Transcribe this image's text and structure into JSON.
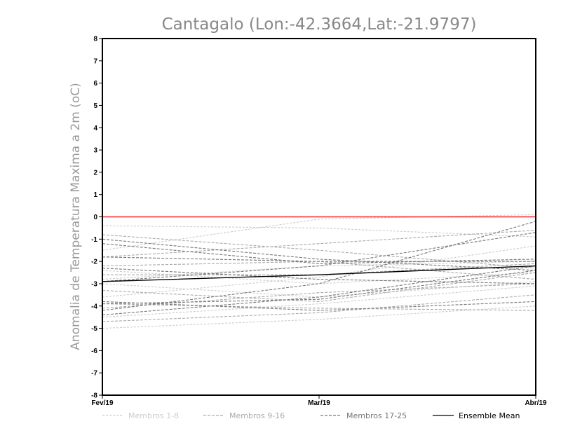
{
  "chart_data": {
    "type": "line",
    "title": "Cantagalo (Lon:-42.3664,Lat:-21.9797)",
    "ylabel": "Anomalia de Temperatura Maxima a 2m (oC)",
    "xlabel": "",
    "categories": [
      "Fev/19",
      "Mar/19",
      "Abr/19"
    ],
    "ylim": [
      -8,
      8
    ],
    "yticks": [
      8,
      7,
      6,
      5,
      4,
      3,
      2,
      1,
      0,
      -1,
      -2,
      -3,
      -4,
      -5,
      -6,
      -7,
      -8
    ],
    "ytick_labels": [
      "8",
      "7",
      "6",
      "5",
      "4",
      "3",
      "2",
      "1",
      "0",
      "-1",
      "-2",
      "-3",
      "-4",
      "-5",
      "-6",
      "-7",
      "-8"
    ],
    "grid": false,
    "reference_line": {
      "y": 0,
      "color": "#ff2020"
    },
    "groups": [
      {
        "label": "Membros 1-8",
        "color": "#cccccc",
        "dash": "3,2"
      },
      {
        "label": "Membros 9-16",
        "color": "#aaaaaa",
        "dash": "4,2"
      },
      {
        "label": "Membros 17-25",
        "color": "#777777",
        "dash": "4,2"
      },
      {
        "label": "Ensemble Mean",
        "color": "#000000",
        "dash": ""
      }
    ],
    "series": [
      {
        "group": 0,
        "values": [
          -0.4,
          -0.5,
          -0.9
        ]
      },
      {
        "group": 0,
        "values": [
          -1.5,
          -0.1,
          0.1
        ]
      },
      {
        "group": 0,
        "values": [
          -2.4,
          -3.0,
          -2.5
        ]
      },
      {
        "group": 0,
        "values": [
          -3.0,
          -3.6,
          -2.9
        ]
      },
      {
        "group": 0,
        "values": [
          -4.5,
          -3.9,
          -3.1
        ]
      },
      {
        "group": 0,
        "values": [
          -5.0,
          -4.6,
          -4.0
        ]
      },
      {
        "group": 0,
        "values": [
          -2.8,
          -2.2,
          -2.0
        ]
      },
      {
        "group": 0,
        "values": [
          -3.6,
          -2.7,
          -1.3
        ]
      },
      {
        "group": 1,
        "values": [
          -0.8,
          -1.5,
          -2.3
        ]
      },
      {
        "group": 1,
        "values": [
          -2.2,
          -2.0,
          -2.8
        ]
      },
      {
        "group": 1,
        "values": [
          -3.3,
          -3.8,
          -2.5
        ]
      },
      {
        "group": 1,
        "values": [
          -4.1,
          -3.4,
          -3.0
        ]
      },
      {
        "group": 1,
        "values": [
          -4.7,
          -4.3,
          -3.5
        ]
      },
      {
        "group": 1,
        "values": [
          -2.6,
          -2.6,
          -2.1
        ]
      },
      {
        "group": 1,
        "values": [
          -1.8,
          -1.2,
          -0.6
        ]
      },
      {
        "group": 1,
        "values": [
          -3.9,
          -4.1,
          -4.2
        ]
      },
      {
        "group": 2,
        "values": [
          -1.0,
          -1.9,
          -2.4
        ]
      },
      {
        "group": 2,
        "values": [
          -1.2,
          -2.1,
          -1.9
        ]
      },
      {
        "group": 2,
        "values": [
          -1.8,
          -2.0,
          -2.0
        ]
      },
      {
        "group": 2,
        "values": [
          -2.3,
          -2.8,
          -3.0
        ]
      },
      {
        "group": 2,
        "values": [
          -2.9,
          -2.2,
          -0.7
        ]
      },
      {
        "group": 2,
        "values": [
          -3.8,
          -4.2,
          -3.8
        ]
      },
      {
        "group": 2,
        "values": [
          -4.2,
          -3.0,
          -0.2
        ]
      },
      {
        "group": 2,
        "values": [
          -4.4,
          -3.6,
          -2.2
        ]
      },
      {
        "group": 2,
        "values": [
          -3.9,
          -3.7,
          -2.4
        ]
      },
      {
        "group": 3,
        "values": [
          -2.9,
          -2.6,
          -2.2
        ]
      }
    ]
  }
}
